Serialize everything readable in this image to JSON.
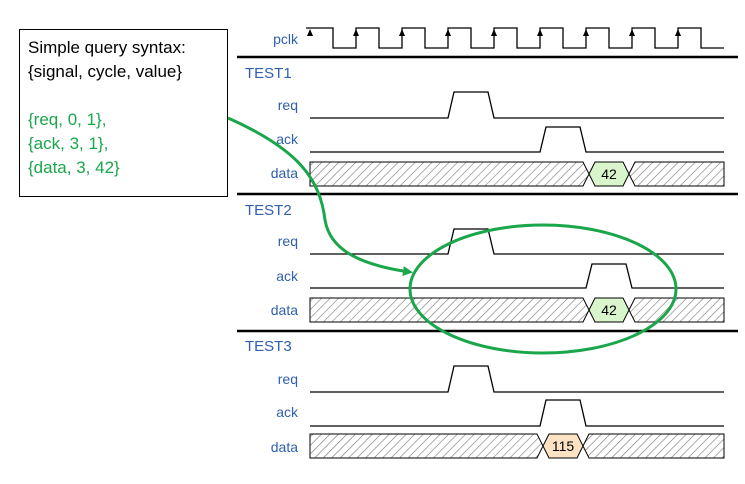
{
  "clock": {
    "label": "pclk",
    "cycles": 9
  },
  "tests": [
    {
      "name": "TEST1",
      "signals": [
        {
          "label": "req",
          "type": "bit",
          "high_cycles": [
            3
          ]
        },
        {
          "label": "ack",
          "type": "bit",
          "high_cycles": [
            5
          ]
        },
        {
          "label": "data",
          "type": "bus",
          "value_cycle": 6,
          "value": "42",
          "value_color": "#d9f5cc"
        }
      ]
    },
    {
      "name": "TEST2",
      "signals": [
        {
          "label": "req",
          "type": "bit",
          "high_cycles": [
            3
          ]
        },
        {
          "label": "ack",
          "type": "bit",
          "high_cycles": [
            6
          ]
        },
        {
          "label": "data",
          "type": "bus",
          "value_cycle": 6,
          "value": "42",
          "value_color": "#d9f5cc"
        }
      ]
    },
    {
      "name": "TEST3",
      "signals": [
        {
          "label": "req",
          "type": "bit",
          "high_cycles": [
            3
          ]
        },
        {
          "label": "ack",
          "type": "bit",
          "high_cycles": [
            5
          ]
        },
        {
          "label": "data",
          "type": "bus",
          "value_cycle": 5,
          "value": "115",
          "value_color": "#fde3c4"
        }
      ]
    }
  ],
  "callout": {
    "title_lines": [
      "Simple query syntax:",
      "{signal, cycle, value}"
    ],
    "query_lines": [
      "{req, 0, 1},",
      "{ack, 3, 1},",
      "{data, 3, 42}"
    ]
  },
  "colors": {
    "query": "#1aa64a",
    "label": "#2f5fb0",
    "highlight": "#1aa64a"
  }
}
